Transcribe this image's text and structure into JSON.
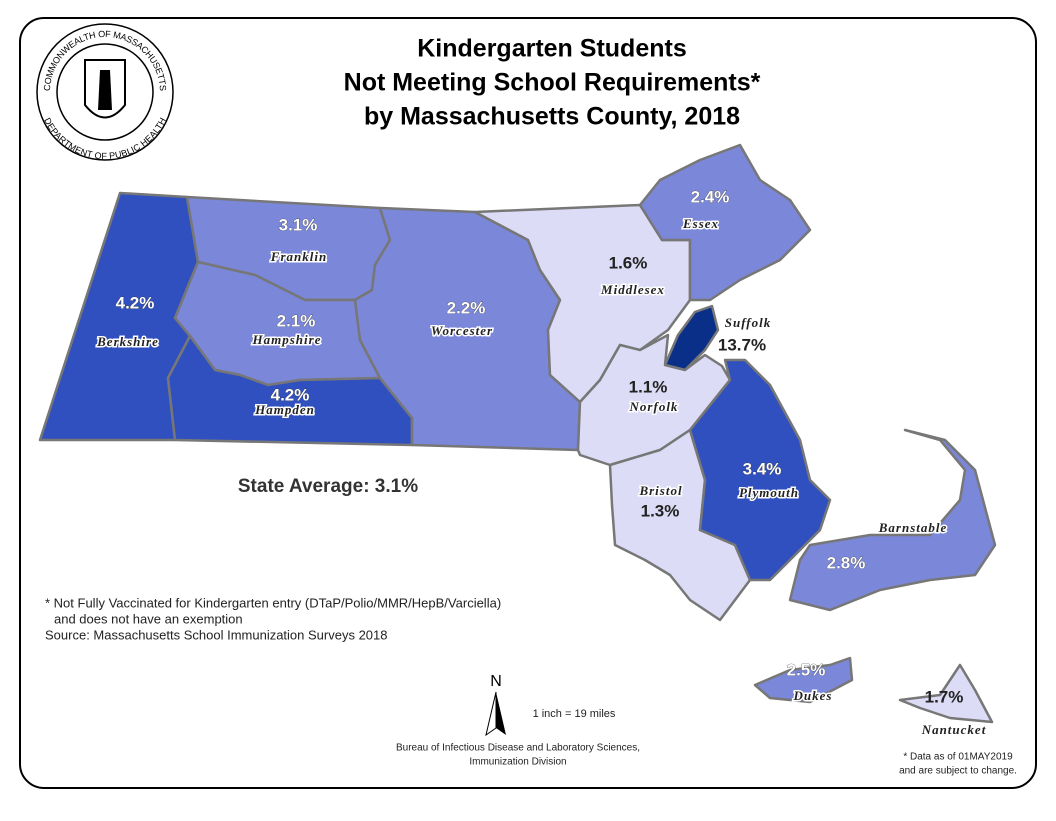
{
  "map": {
    "title": [
      "Kindergarten Students",
      "Not Meeting School Requirements*",
      "by Massachusetts County, 2018"
    ],
    "seal": {
      "top": "COMMONWEALTH OF MASSACHUSETTS",
      "bottom": "DEPARTMENT OF PUBLIC HEALTH"
    },
    "counties": [
      {
        "name": "Berkshire",
        "value": 4.2,
        "value_label": "4.2%",
        "color": "#3050bf"
      },
      {
        "name": "Franklin",
        "value": 3.1,
        "value_label": "3.1%",
        "color": "#7b87d9"
      },
      {
        "name": "Hampshire",
        "value": 2.1,
        "value_label": "2.1%",
        "color": "#7b87d9"
      },
      {
        "name": "Hampden",
        "value": 4.2,
        "value_label": "4.2%",
        "color": "#3050bf"
      },
      {
        "name": "Worcester",
        "value": 2.2,
        "value_label": "2.2%",
        "color": "#7b87d9"
      },
      {
        "name": "Middlesex",
        "value": 1.6,
        "value_label": "1.6%",
        "color": "#dcdcf6"
      },
      {
        "name": "Essex",
        "value": 2.4,
        "value_label": "2.4%",
        "color": "#7b87d9"
      },
      {
        "name": "Suffolk",
        "value": 13.7,
        "value_label": "13.7%",
        "color": "#0a2f88"
      },
      {
        "name": "Norfolk",
        "value": 1.1,
        "value_label": "1.1%",
        "color": "#dcdcf6"
      },
      {
        "name": "Bristol",
        "value": 1.3,
        "value_label": "1.3%",
        "color": "#dcdcf6"
      },
      {
        "name": "Plymouth",
        "value": 3.4,
        "value_label": "3.4%",
        "color": "#3050bf"
      },
      {
        "name": "Barnstable",
        "value": 2.8,
        "value_label": "2.8%",
        "color": "#7b87d9"
      },
      {
        "name": "Dukes",
        "value": 2.5,
        "value_label": "2.5%",
        "color": "#7b87d9"
      },
      {
        "name": "Nantucket",
        "value": 1.7,
        "value_label": "1.7%",
        "color": "#dcdcf6"
      }
    ],
    "state_average": "State Average: 3.1%",
    "footnote": [
      "* Not Fully Vaccinated for Kindergarten entry (DTaP/Polio/MMR/HepB/Varciella)",
      "and does not have an exemption",
      "Source: Massachusetts School Immunization Surveys 2018"
    ],
    "north": "N",
    "scale": "1 inch = 19 miles",
    "credit": [
      "Bureau of Infectious Disease and Laboratory Sciences,",
      "Immunization Division"
    ],
    "data_note": [
      "* Data as of 01MAY2019",
      "and are subject to change."
    ]
  }
}
